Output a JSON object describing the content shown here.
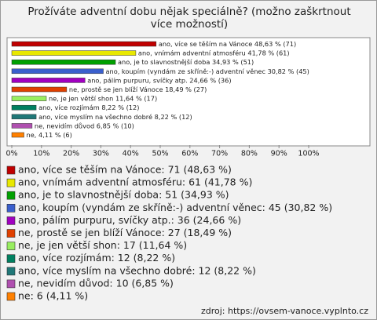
{
  "chart_data": {
    "type": "bar",
    "orientation": "horizontal",
    "title": "Prožíváte adventní dobu nějak speciálně? (možno zaškrtnout více možností)",
    "categories": [
      "ano, více se těším na Vánoce",
      "ano, vnímám adventní atmosféru",
      "ano, je to slavnostnější doba",
      "ano, koupím (vyndám ze skříně:-) adventní věnec",
      "ano, pálím purpuru, svíčky atp.",
      "ne, prostě se jen blíží Vánoce",
      "ne, je jen větší shon",
      "ano, více rozjímám",
      "ano, více myslím na všechno dobré",
      "ne, nevidím důvod",
      "ne,"
    ],
    "values": [
      48.63,
      41.78,
      34.93,
      30.82,
      24.66,
      18.49,
      11.64,
      8.22,
      8.22,
      6.85,
      4.11
    ],
    "value_labels": [
      "48,63 % (71)",
      "41,78 % (61)",
      "34,93 % (51)",
      "30,82 % (45)",
      "24,66 % (36)",
      "18,49 % (27)",
      "11,64 % (17)",
      "8,22 % (12)",
      "8,22 % (12)",
      "6,85 % (10)",
      "4,11 % (6)"
    ],
    "colors": [
      "#c00000",
      "#e8e800",
      "#00a000",
      "#3a5fcd",
      "#a000c0",
      "#e04000",
      "#98ee60",
      "#008060",
      "#207878",
      "#b050b0",
      "#ff8000"
    ],
    "legend": [
      "ano, více se těším na Vánoce: 71 (48,63 %)",
      "ano, vnímám adventní atmosféru: 61 (41,78 %)",
      "ano, je to slavnostnější doba: 51 (34,93 %)",
      "ano, koupím (vyndám ze skříně:-) adventní věnec: 45 (30,82 %)",
      "ano, pálím purpuru, svíčky atp.: 36 (24,66 %)",
      "ne, prostě se jen blíží Vánoce: 27 (18,49 %)",
      "ne, je jen větší shon: 17 (11,64 %)",
      "ano, více rozjímám: 12 (8,22 %)",
      "ano, více myslím na všechno dobré: 12 (8,22 %)",
      "ne, nevidím důvod: 10 (6,85 %)",
      "ne: 6 (4,11 %)"
    ],
    "xlim": [
      0,
      100
    ],
    "xticks": [
      {
        "value": 0,
        "label": "0%"
      },
      {
        "value": 10,
        "label": "10%"
      },
      {
        "value": 20,
        "label": "20%"
      },
      {
        "value": 30,
        "label": "30%"
      },
      {
        "value": 40,
        "label": "40%"
      },
      {
        "value": 50,
        "label": "50%"
      },
      {
        "value": 60,
        "label": "60%"
      },
      {
        "value": 70,
        "label": "70%"
      },
      {
        "value": 80,
        "label": "80%"
      },
      {
        "value": 90,
        "label": "90%"
      },
      {
        "value": 100,
        "label": "100%"
      }
    ],
    "source": "zdroj: https://ovsem-vanoce.vyplnto.cz"
  }
}
